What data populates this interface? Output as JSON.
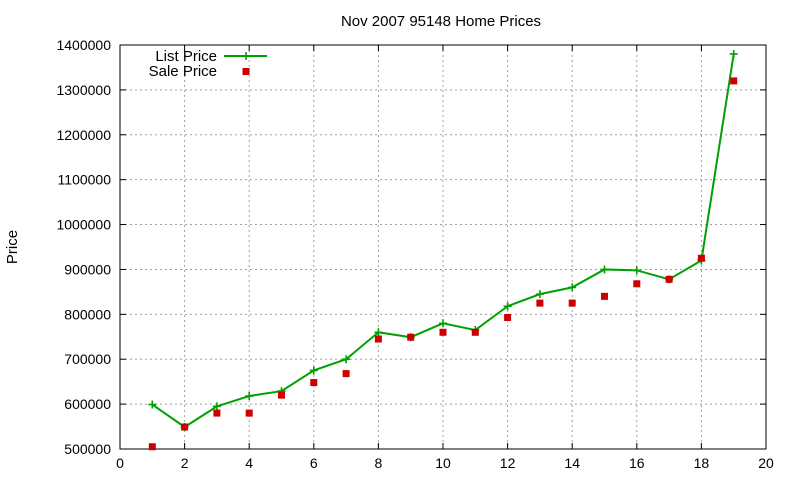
{
  "chart_data": {
    "type": "line",
    "title": "Nov 2007 95148 Home Prices",
    "xlabel": "",
    "ylabel": "Price",
    "xlim": [
      0,
      20
    ],
    "ylim": [
      500000,
      1400000
    ],
    "x_ticks": [
      0,
      2,
      4,
      6,
      8,
      10,
      12,
      14,
      16,
      18,
      20
    ],
    "y_ticks": [
      500000,
      600000,
      700000,
      800000,
      900000,
      1000000,
      1100000,
      1200000,
      1300000,
      1400000
    ],
    "grid": true,
    "legend_position": "top-left",
    "series": [
      {
        "name": "List Price",
        "style": "line-with-plus-markers",
        "color": "#00a000",
        "x": [
          1,
          2,
          3,
          4,
          5,
          6,
          7,
          8,
          9,
          10,
          11,
          12,
          13,
          14,
          15,
          16,
          17,
          18,
          19
        ],
        "y": [
          599000,
          549000,
          595000,
          618000,
          629000,
          675000,
          700000,
          760000,
          749000,
          780000,
          765000,
          818000,
          845000,
          860000,
          900000,
          898000,
          878000,
          920000,
          1380000
        ]
      },
      {
        "name": "Sale Price",
        "style": "square-markers",
        "color": "#cc0000",
        "x": [
          1,
          2,
          3,
          4,
          5,
          6,
          7,
          8,
          9,
          10,
          11,
          12,
          13,
          14,
          15,
          16,
          17,
          18,
          19
        ],
        "y": [
          505000,
          549000,
          580000,
          580000,
          620000,
          648000,
          668000,
          745000,
          749000,
          760000,
          760000,
          793000,
          825000,
          825000,
          840000,
          868000,
          878000,
          925000,
          1320000
        ]
      }
    ]
  }
}
